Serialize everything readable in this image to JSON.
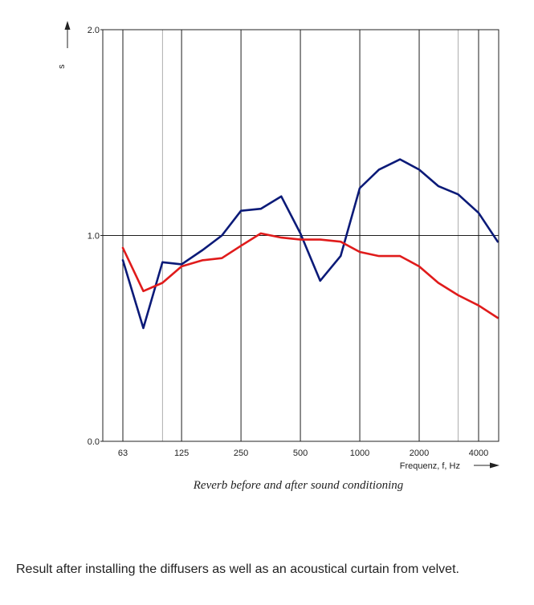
{
  "chart_data": {
    "type": "line",
    "x_ticks": [
      "63",
      "125",
      "250",
      "500",
      "1000",
      "2000",
      "4000"
    ],
    "xlabel": "Frequenz, f, Hz",
    "ylabel": "s",
    "y_ticks": [
      "0.0",
      "1.0",
      "2.0"
    ],
    "ylim": [
      0,
      2
    ],
    "x_scale": "log",
    "grid": true,
    "series": [
      {
        "color": "#0b1a78",
        "x": [
          63,
          80,
          100,
          125,
          160,
          200,
          250,
          315,
          400,
          500,
          630,
          800,
          1000,
          1250,
          1600,
          2000,
          2500,
          3150,
          4000,
          5000
        ],
        "values": [
          0.88,
          0.55,
          0.87,
          0.86,
          0.93,
          1.0,
          1.12,
          1.13,
          1.19,
          1.01,
          0.78,
          0.9,
          1.23,
          1.32,
          1.37,
          1.32,
          1.24,
          1.2,
          1.11,
          0.97
        ]
      },
      {
        "color": "#e01b1b",
        "x": [
          63,
          80,
          100,
          125,
          160,
          200,
          250,
          315,
          400,
          500,
          630,
          800,
          1000,
          1250,
          1600,
          2000,
          2500,
          3150,
          4000,
          5000
        ],
        "values": [
          0.94,
          0.73,
          0.77,
          0.85,
          0.88,
          0.89,
          0.95,
          1.01,
          0.99,
          0.98,
          0.98,
          0.97,
          0.92,
          0.9,
          0.9,
          0.85,
          0.77,
          0.71,
          0.66,
          0.6
        ]
      }
    ]
  },
  "caption": "Reverb before and after sound conditioning",
  "note": "Result after installing the diffusers as well as an acoustical curtain from velvet."
}
